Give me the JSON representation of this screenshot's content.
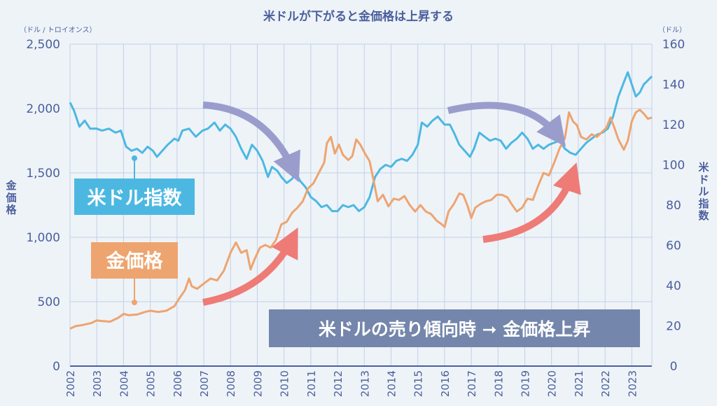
{
  "chart_data": {
    "type": "line",
    "title": "米ドルが下がると金価格は上昇する",
    "left_axis": {
      "label": "金価格",
      "unit": "（ドル / トロイオンス）",
      "ticks": [
        "0",
        "500",
        "1,000",
        "1,500",
        "2,000",
        "2,500"
      ],
      "range": [
        0,
        2500
      ]
    },
    "right_axis": {
      "label": "米ドル指数",
      "unit": "（ドル）",
      "ticks": [
        "0",
        "20",
        "40",
        "60",
        "80",
        "100",
        "120",
        "140",
        "160"
      ],
      "range": [
        0,
        160
      ]
    },
    "x_ticks": [
      "2002",
      "2003",
      "2004",
      "2005",
      "2006",
      "2007",
      "2008",
      "2009",
      "2010",
      "2011",
      "2012",
      "2013",
      "2014",
      "2015",
      "2016",
      "2017",
      "2018",
      "2019",
      "2020",
      "2021",
      "2022",
      "2023"
    ],
    "x_range": [
      2002.0,
      2023.75
    ],
    "grid": true,
    "series": [
      {
        "name": "米ドル指数",
        "axis": "right",
        "color": "#4cb8e2",
        "points": [
          [
            2002.0,
            131
          ],
          [
            2002.15,
            127
          ],
          [
            2002.35,
            119
          ],
          [
            2002.55,
            122
          ],
          [
            2002.75,
            118
          ],
          [
            2003.0,
            118
          ],
          [
            2003.2,
            117
          ],
          [
            2003.45,
            118
          ],
          [
            2003.7,
            116
          ],
          [
            2003.9,
            117
          ],
          [
            2004.1,
            109
          ],
          [
            2004.3,
            107
          ],
          [
            2004.5,
            108
          ],
          [
            2004.7,
            106
          ],
          [
            2004.9,
            109
          ],
          [
            2005.1,
            107
          ],
          [
            2005.25,
            104
          ],
          [
            2005.45,
            107
          ],
          [
            2005.65,
            110
          ],
          [
            2005.9,
            113
          ],
          [
            2006.05,
            112
          ],
          [
            2006.2,
            117
          ],
          [
            2006.45,
            118
          ],
          [
            2006.7,
            114
          ],
          [
            2006.95,
            117
          ],
          [
            2007.15,
            118
          ],
          [
            2007.4,
            121
          ],
          [
            2007.6,
            117
          ],
          [
            2007.8,
            120
          ],
          [
            2008.0,
            118
          ],
          [
            2008.2,
            114
          ],
          [
            2008.4,
            108
          ],
          [
            2008.6,
            103
          ],
          [
            2008.8,
            110
          ],
          [
            2009.0,
            107
          ],
          [
            2009.2,
            102
          ],
          [
            2009.4,
            94
          ],
          [
            2009.55,
            99
          ],
          [
            2009.75,
            97
          ],
          [
            2009.9,
            94
          ],
          [
            2010.1,
            91
          ],
          [
            2010.3,
            93
          ],
          [
            2010.45,
            96
          ],
          [
            2010.6,
            92
          ],
          [
            2010.8,
            89
          ],
          [
            2011.0,
            84
          ],
          [
            2011.2,
            82
          ],
          [
            2011.4,
            79
          ],
          [
            2011.6,
            80
          ],
          [
            2011.8,
            77
          ],
          [
            2012.0,
            77
          ],
          [
            2012.2,
            80
          ],
          [
            2012.4,
            79
          ],
          [
            2012.6,
            80
          ],
          [
            2012.8,
            77
          ],
          [
            2013.0,
            79
          ],
          [
            2013.2,
            84
          ],
          [
            2013.4,
            94
          ],
          [
            2013.6,
            98
          ],
          [
            2013.8,
            100
          ],
          [
            2014.0,
            99
          ],
          [
            2014.2,
            102
          ],
          [
            2014.4,
            103
          ],
          [
            2014.6,
            102
          ],
          [
            2014.8,
            105
          ],
          [
            2015.0,
            110
          ],
          [
            2015.15,
            121
          ],
          [
            2015.35,
            119
          ],
          [
            2015.55,
            122
          ],
          [
            2015.75,
            124
          ],
          [
            2016.0,
            120
          ],
          [
            2016.2,
            120
          ],
          [
            2016.35,
            116
          ],
          [
            2016.55,
            110
          ],
          [
            2016.75,
            107
          ],
          [
            2016.95,
            104
          ],
          [
            2017.1,
            108
          ],
          [
            2017.3,
            116
          ],
          [
            2017.5,
            114
          ],
          [
            2017.7,
            112
          ],
          [
            2017.9,
            113
          ],
          [
            2018.1,
            112
          ],
          [
            2018.3,
            108
          ],
          [
            2018.5,
            111
          ],
          [
            2018.7,
            113
          ],
          [
            2018.9,
            116
          ],
          [
            2019.1,
            113
          ],
          [
            2019.3,
            108
          ],
          [
            2019.5,
            110
          ],
          [
            2019.7,
            108
          ],
          [
            2019.9,
            110
          ],
          [
            2020.1,
            111
          ],
          [
            2020.3,
            112
          ],
          [
            2020.5,
            108
          ],
          [
            2020.7,
            106
          ],
          [
            2020.9,
            105
          ],
          [
            2021.1,
            108
          ],
          [
            2021.3,
            111
          ],
          [
            2021.5,
            113
          ],
          [
            2021.7,
            115
          ],
          [
            2021.9,
            116
          ],
          [
            2022.1,
            118
          ],
          [
            2022.3,
            124
          ],
          [
            2022.5,
            134
          ],
          [
            2022.7,
            141
          ],
          [
            2022.85,
            146
          ],
          [
            2023.0,
            140
          ],
          [
            2023.15,
            134
          ],
          [
            2023.3,
            136
          ],
          [
            2023.45,
            140
          ],
          [
            2023.6,
            142
          ],
          [
            2023.75,
            144
          ]
        ]
      },
      {
        "name": "金価格",
        "axis": "left",
        "color": "#eea46f",
        "points": [
          [
            2002.0,
            290
          ],
          [
            2002.2,
            310
          ],
          [
            2002.5,
            320
          ],
          [
            2002.8,
            335
          ],
          [
            2003.0,
            355
          ],
          [
            2003.2,
            350
          ],
          [
            2003.5,
            345
          ],
          [
            2003.8,
            375
          ],
          [
            2004.0,
            405
          ],
          [
            2004.2,
            395
          ],
          [
            2004.5,
            400
          ],
          [
            2004.8,
            420
          ],
          [
            2005.0,
            430
          ],
          [
            2005.3,
            420
          ],
          [
            2005.6,
            430
          ],
          [
            2005.9,
            465
          ],
          [
            2006.1,
            530
          ],
          [
            2006.3,
            590
          ],
          [
            2006.45,
            680
          ],
          [
            2006.55,
            620
          ],
          [
            2006.75,
            600
          ],
          [
            2007.0,
            640
          ],
          [
            2007.25,
            680
          ],
          [
            2007.5,
            665
          ],
          [
            2007.75,
            740
          ],
          [
            2008.0,
            880
          ],
          [
            2008.2,
            960
          ],
          [
            2008.4,
            880
          ],
          [
            2008.6,
            900
          ],
          [
            2008.75,
            750
          ],
          [
            2008.9,
            830
          ],
          [
            2009.1,
            920
          ],
          [
            2009.3,
            940
          ],
          [
            2009.5,
            920
          ],
          [
            2009.7,
            980
          ],
          [
            2009.9,
            1100
          ],
          [
            2010.1,
            1120
          ],
          [
            2010.3,
            1190
          ],
          [
            2010.5,
            1230
          ],
          [
            2010.7,
            1280
          ],
          [
            2010.9,
            1380
          ],
          [
            2011.1,
            1420
          ],
          [
            2011.3,
            1500
          ],
          [
            2011.5,
            1580
          ],
          [
            2011.6,
            1730
          ],
          [
            2011.75,
            1780
          ],
          [
            2011.9,
            1650
          ],
          [
            2012.05,
            1720
          ],
          [
            2012.2,
            1640
          ],
          [
            2012.4,
            1600
          ],
          [
            2012.55,
            1630
          ],
          [
            2012.7,
            1760
          ],
          [
            2012.85,
            1720
          ],
          [
            2013.0,
            1660
          ],
          [
            2013.2,
            1590
          ],
          [
            2013.35,
            1440
          ],
          [
            2013.5,
            1280
          ],
          [
            2013.7,
            1330
          ],
          [
            2013.9,
            1240
          ],
          [
            2014.1,
            1300
          ],
          [
            2014.3,
            1290
          ],
          [
            2014.5,
            1320
          ],
          [
            2014.7,
            1250
          ],
          [
            2014.9,
            1200
          ],
          [
            2015.1,
            1250
          ],
          [
            2015.3,
            1200
          ],
          [
            2015.5,
            1180
          ],
          [
            2015.7,
            1130
          ],
          [
            2015.9,
            1100
          ],
          [
            2016.0,
            1080
          ],
          [
            2016.15,
            1200
          ],
          [
            2016.35,
            1260
          ],
          [
            2016.55,
            1340
          ],
          [
            2016.7,
            1330
          ],
          [
            2016.85,
            1250
          ],
          [
            2017.0,
            1150
          ],
          [
            2017.15,
            1230
          ],
          [
            2017.35,
            1260
          ],
          [
            2017.55,
            1280
          ],
          [
            2017.75,
            1290
          ],
          [
            2017.95,
            1330
          ],
          [
            2018.15,
            1330
          ],
          [
            2018.35,
            1310
          ],
          [
            2018.5,
            1260
          ],
          [
            2018.7,
            1200
          ],
          [
            2018.9,
            1230
          ],
          [
            2019.1,
            1300
          ],
          [
            2019.3,
            1290
          ],
          [
            2019.5,
            1400
          ],
          [
            2019.7,
            1500
          ],
          [
            2019.9,
            1480
          ],
          [
            2020.1,
            1580
          ],
          [
            2020.3,
            1690
          ],
          [
            2020.5,
            1770
          ],
          [
            2020.65,
            1970
          ],
          [
            2020.8,
            1900
          ],
          [
            2020.95,
            1870
          ],
          [
            2021.1,
            1780
          ],
          [
            2021.3,
            1760
          ],
          [
            2021.5,
            1800
          ],
          [
            2021.7,
            1780
          ],
          [
            2021.9,
            1820
          ],
          [
            2022.05,
            1850
          ],
          [
            2022.2,
            1930
          ],
          [
            2022.35,
            1850
          ],
          [
            2022.5,
            1760
          ],
          [
            2022.7,
            1680
          ],
          [
            2022.85,
            1750
          ],
          [
            2023.0,
            1900
          ],
          [
            2023.15,
            1970
          ],
          [
            2023.3,
            1990
          ],
          [
            2023.45,
            1960
          ],
          [
            2023.6,
            1920
          ],
          [
            2023.75,
            1930
          ]
        ]
      }
    ],
    "labels": {
      "usd_index": "米ドル指数",
      "gold": "金価格",
      "banner": "米ドルの売り傾向時 ➞ 金価格上昇"
    },
    "colors": {
      "background": "#eef3f8",
      "grid": "#c3d0e6",
      "axis_text": "#4b5f9c",
      "usd_box": "#4cb8e2",
      "gold_box": "#eea46f",
      "banner_box": "#7486ab",
      "arrow_purple": "#9a9dcc",
      "arrow_red": "#ee7b76"
    }
  }
}
